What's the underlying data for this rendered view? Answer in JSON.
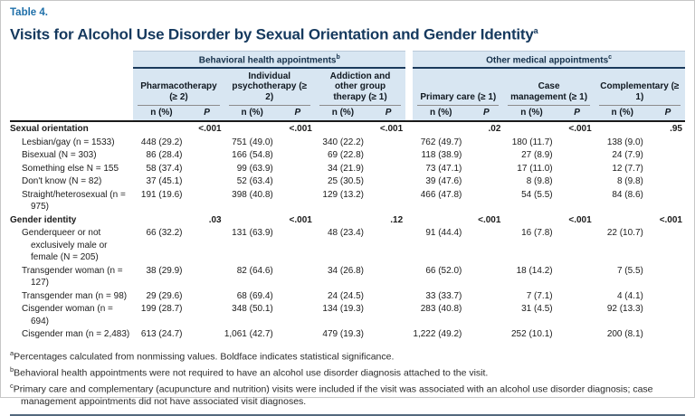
{
  "page": {
    "label": "Table 4.",
    "title": "Visits for Alcohol Use Disorder by Sexual Orientation and Gender Identity",
    "title_sup": "a"
  },
  "header": {
    "bands": [
      {
        "label": "Behavioral health appointments",
        "sup": "b"
      },
      {
        "label": "Other medical appointments",
        "sup": "c"
      }
    ],
    "columns": [
      "Pharmacotherapy (≥ 2)",
      "Individual psychotherapy (≥ 2)",
      "Addiction and other group therapy (≥ 1)",
      "Primary care (≥ 1)",
      "Case management (≥ 1)",
      "Complementary (≥ 1)"
    ],
    "sub_n": "n (%)",
    "sub_p": "P"
  },
  "body": {
    "sections": [
      {
        "name": "Sexual orientation",
        "p_values": [
          {
            "v": "<.001",
            "bold": true
          },
          {
            "v": "<.001",
            "bold": true
          },
          {
            "v": "<.001",
            "bold": true
          },
          {
            "v": ".02",
            "bold": true
          },
          {
            "v": "<.001",
            "bold": true
          },
          {
            "v": ".95",
            "bold": false
          }
        ],
        "rows": [
          {
            "label": "Lesbian/gay (n = 1533)",
            "values": [
              "448 (29.2)",
              "751 (49.0)",
              "340 (22.2)",
              "762 (49.7)",
              "180 (11.7)",
              "138 (9.0)"
            ]
          },
          {
            "label": "Bisexual (N = 303)",
            "values": [
              "86 (28.4)",
              "166 (54.8)",
              "69 (22.8)",
              "118 (38.9)",
              "27 (8.9)",
              "24 (7.9)"
            ]
          },
          {
            "label": "Something else N = 155",
            "values": [
              "58 (37.4)",
              "99 (63.9)",
              "34 (21.9)",
              "73 (47.1)",
              "17 (11.0)",
              "12 (7.7)"
            ]
          },
          {
            "label": "Don't know (N = 82)",
            "values": [
              "37 (45.1)",
              "52 (63.4)",
              "25 (30.5)",
              "39 (47.6)",
              "8 (9.8)",
              "8 (9.8)"
            ]
          },
          {
            "label": "Straight/heterosexual (n = 975)",
            "values": [
              "191 (19.6)",
              "398 (40.8)",
              "129 (13.2)",
              "466 (47.8)",
              "54 (5.5)",
              "84 (8.6)"
            ]
          }
        ]
      },
      {
        "name": "Gender identity",
        "p_values": [
          {
            "v": ".03",
            "bold": true
          },
          {
            "v": "<.001",
            "bold": true
          },
          {
            "v": ".12",
            "bold": false
          },
          {
            "v": "<.001",
            "bold": true
          },
          {
            "v": "<.001",
            "bold": true
          },
          {
            "v": "<.001",
            "bold": true
          }
        ],
        "rows": [
          {
            "label": "Genderqueer or not exclusively male or female (N = 205)",
            "values": [
              "66 (32.2)",
              "131 (63.9)",
              "48 (23.4)",
              "91 (44.4)",
              "16 (7.8)",
              "22 (10.7)"
            ]
          },
          {
            "label": "Transgender woman (n = 127)",
            "values": [
              "38 (29.9)",
              "82 (64.6)",
              "34 (26.8)",
              "66 (52.0)",
              "18 (14.2)",
              "7 (5.5)"
            ]
          },
          {
            "label": "Transgender man (n = 98)",
            "values": [
              "29 (29.6)",
              "68 (69.4)",
              "24 (24.5)",
              "33 (33.7)",
              "7 (7.1)",
              "4 (4.1)"
            ]
          },
          {
            "label": "Cisgender woman (n = 694)",
            "values": [
              "199 (28.7)",
              "348 (50.1)",
              "134 (19.3)",
              "283 (40.8)",
              "31 (4.5)",
              "92 (13.3)"
            ]
          },
          {
            "label": "Cisgender man (n = 2,483)",
            "values": [
              "613 (24.7)",
              "1,061 (42.7)",
              "479 (19.3)",
              "1,222 (49.2)",
              "252 (10.1)",
              "200 (8.1)"
            ]
          }
        ]
      }
    ]
  },
  "footnotes": [
    {
      "sup": "a",
      "text": "Percentages calculated from nonmissing values. Boldface indicates statistical significance."
    },
    {
      "sup": "b",
      "text": "Behavioral health appointments were not required to have an alcohol use disorder diagnosis attached to the visit."
    },
    {
      "sup": "c",
      "text": "Primary care and complementary (acupuncture and nutrition) visits were included if the visit was associated with an alcohol use disorder diagnosis; case management appointments did not have associated visit diagnoses."
    }
  ],
  "colors": {
    "accent_blue": "#1e6fa9",
    "title_navy": "#15395e",
    "band_bg": "#d8e6f2",
    "band_border": "#1b3a5c",
    "rule_dark": "#1a1a1a",
    "underline_gray": "#8c8c8c",
    "bottom_rule": "#53687d"
  }
}
